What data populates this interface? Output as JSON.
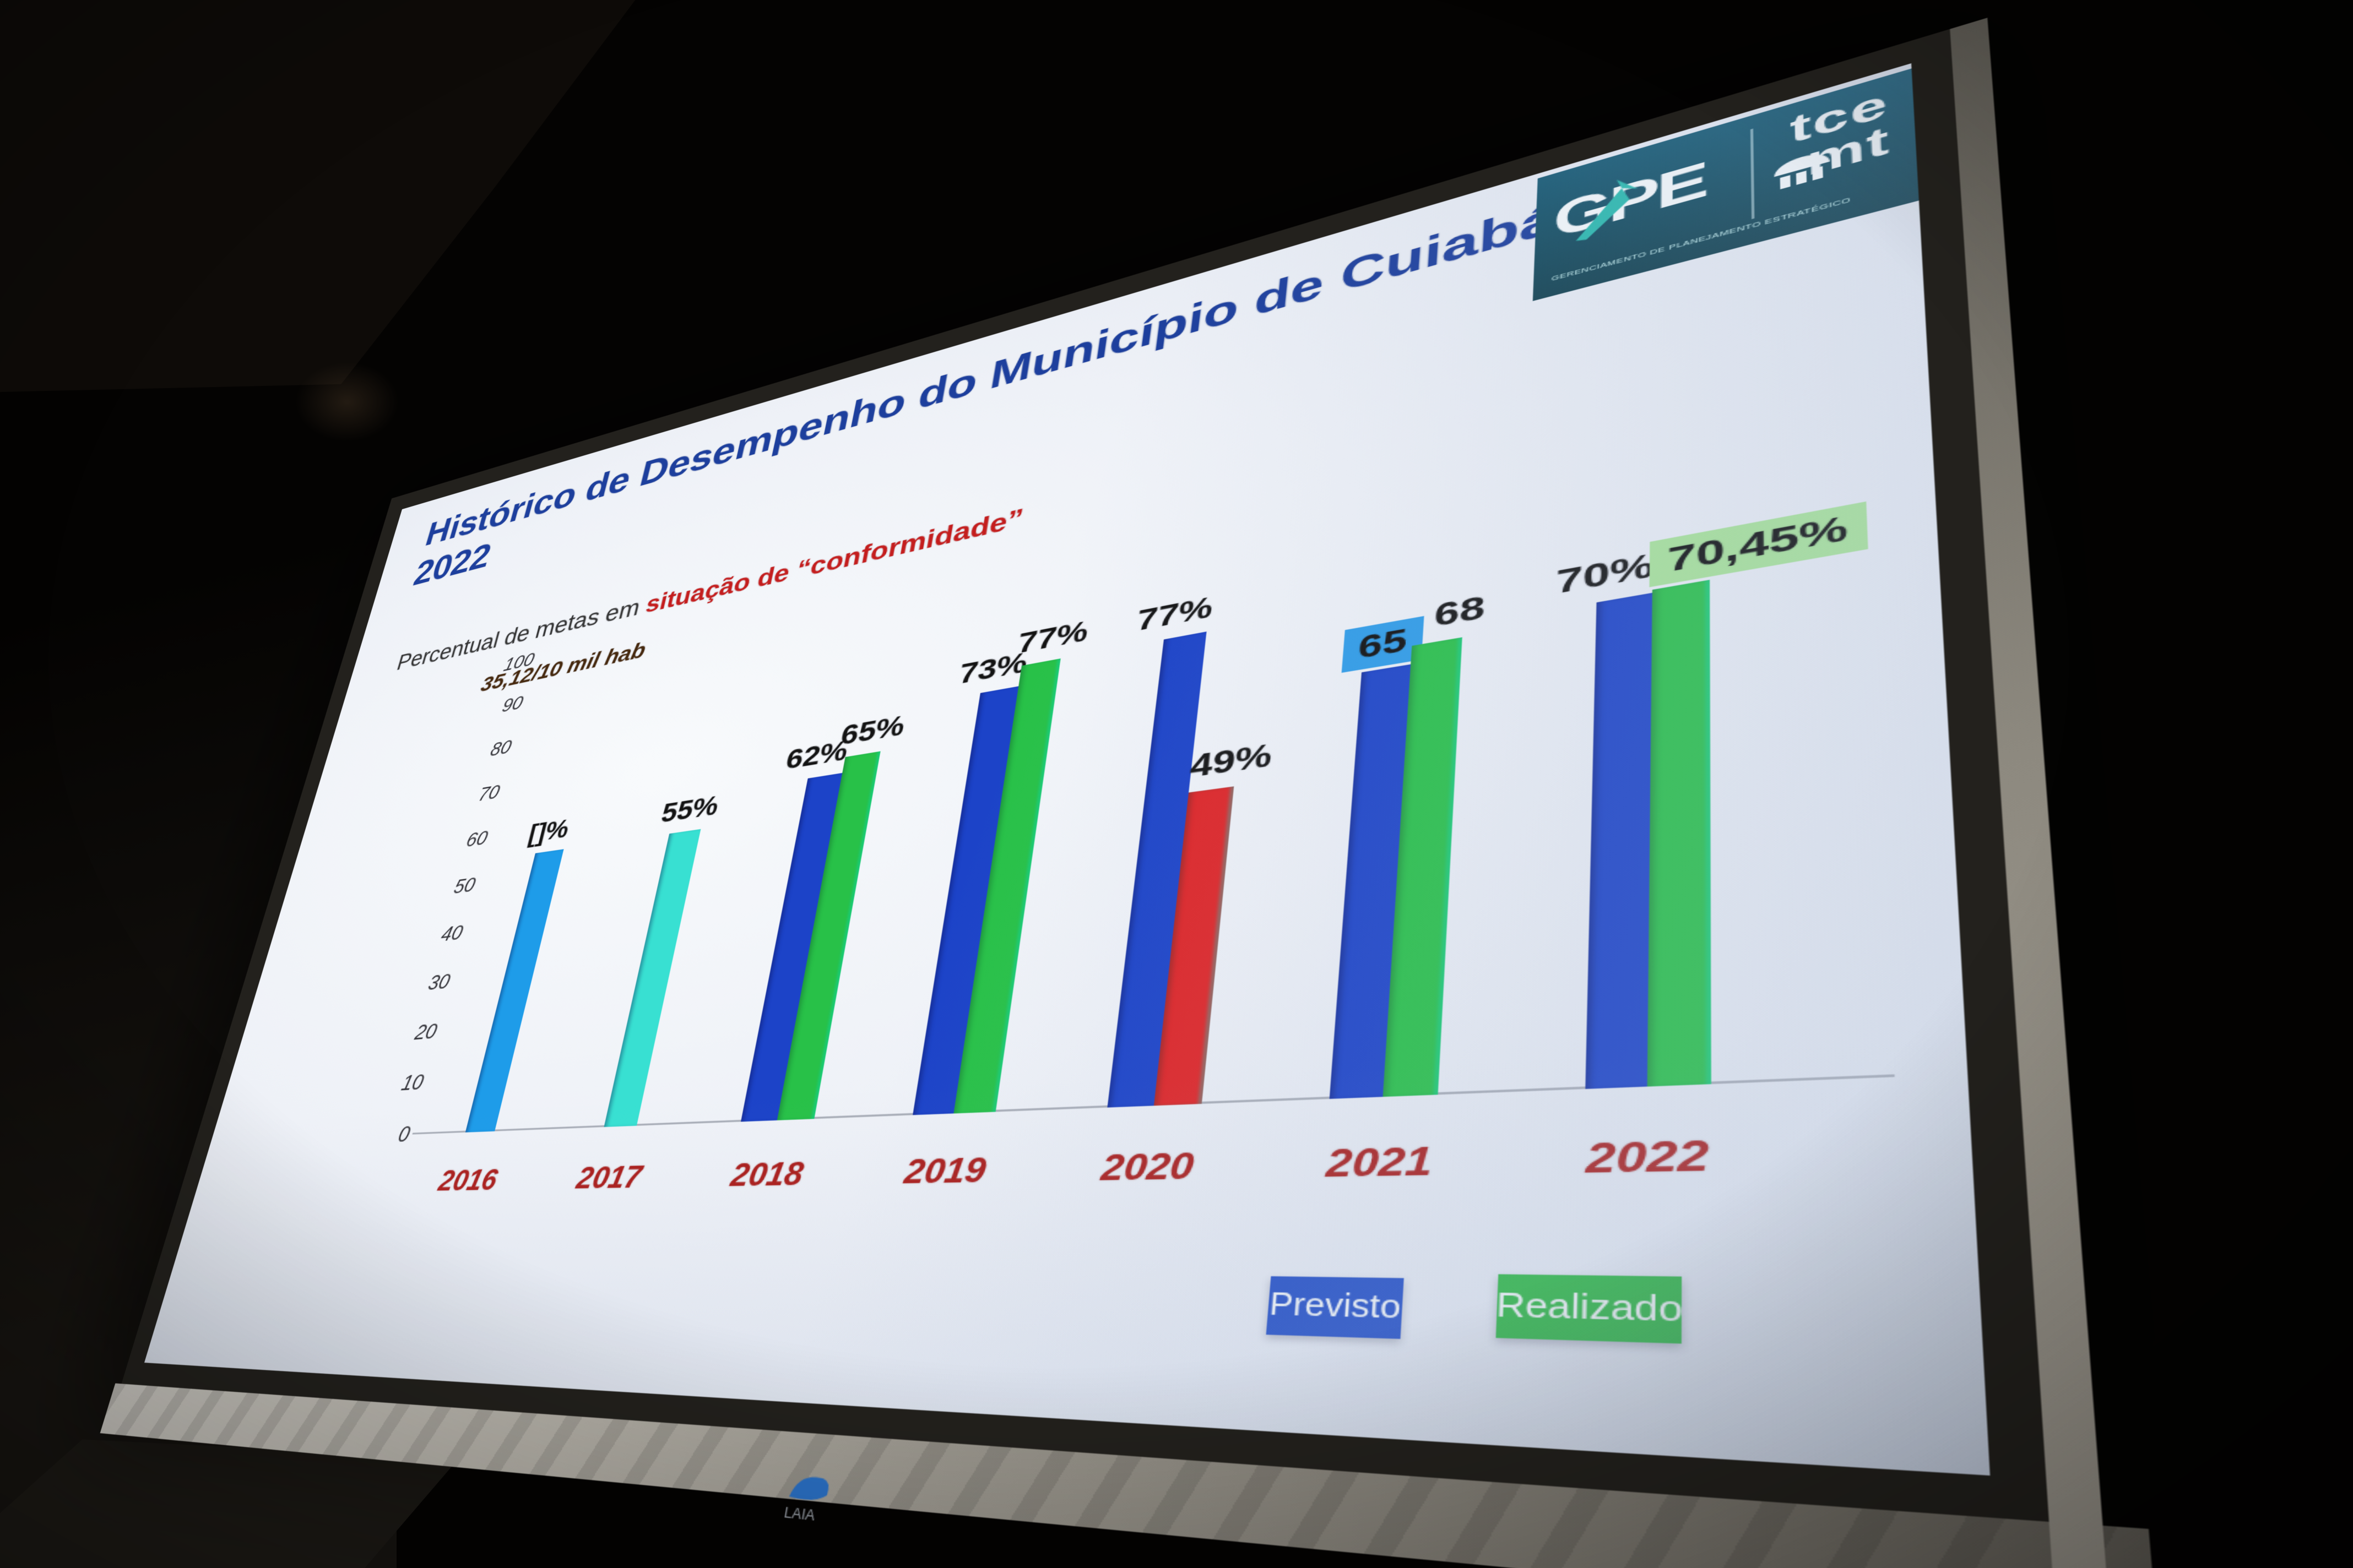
{
  "slide": {
    "title_line1": "Histórico de Desempenho do Município de Cuiabá -",
    "title_line2": "2022",
    "subtitle_plain": "Percentual de metas em ",
    "subtitle_red": "situação de “conformidade”",
    "annotation": "35,12/10 mil hab"
  },
  "colors": {
    "title": "#1d3f9d",
    "subtitle_plain": "#333333",
    "subtitle_red": "#c41e1e",
    "annotation": "#46290f",
    "year_labels": "#ab1f1d",
    "slide_background": "#eef1f7"
  },
  "logo": {
    "gpe": "GPE",
    "caption": "GERENCIAMENTO DE PLANEJAMENTO ESTRATÉGICO",
    "tce": "tce",
    "mt": "mt",
    "box_color": "#175a74",
    "arrow_color": "#2bb9ae",
    "building_icon": "classical-building-icon"
  },
  "chart_data": {
    "type": "bar",
    "title": "",
    "xlabel": "",
    "ylabel": "",
    "ylim": [
      0,
      100
    ],
    "yticks": [
      0,
      10,
      20,
      30,
      40,
      50,
      60,
      70,
      80,
      90,
      100
    ],
    "grid": false,
    "legend_position": "bottom",
    "categories": [
      "2016",
      "2017",
      "2018",
      "2019",
      "2020",
      "2021",
      "2022"
    ],
    "bars": [
      {
        "year": "2016",
        "items": [
          {
            "label": "[]%",
            "value": 55,
            "color": "#1e9ce9"
          }
        ]
      },
      {
        "year": "2017",
        "items": [
          {
            "label": "55%",
            "value": 55,
            "color": "#38e0d2"
          }
        ]
      },
      {
        "year": "2018",
        "items": [
          {
            "label": "62%",
            "value": 62,
            "color": "#1c43c8"
          },
          {
            "label": "65%",
            "value": 65,
            "color": "#28c148"
          }
        ]
      },
      {
        "year": "2019",
        "items": [
          {
            "label": "73%",
            "value": 73,
            "color": "#1c43c8"
          },
          {
            "label": "77%",
            "value": 77,
            "color": "#28c148"
          }
        ]
      },
      {
        "year": "2020",
        "items": [
          {
            "label": "77%",
            "value": 77,
            "color": "#1c43c8"
          },
          {
            "label": "49%",
            "value": 49,
            "color": "#df2527"
          }
        ]
      },
      {
        "year": "2021",
        "items": [
          {
            "label": "65",
            "value": 65,
            "color": "#1c43c8",
            "label_box": "#2e9ce8"
          },
          {
            "label": "68",
            "value": 68,
            "color": "#28c148"
          }
        ]
      },
      {
        "year": "2022",
        "items": [
          {
            "label": "70%",
            "value": 70,
            "color": "#1c43c8"
          },
          {
            "label": "70,45%",
            "value": 70.45,
            "color": "#28c148",
            "label_box": "#a8e39a"
          }
        ]
      }
    ],
    "legend": [
      {
        "label": "Previsto",
        "color": "#2450c8"
      },
      {
        "label": "Realizado",
        "color": "#2db843"
      }
    ]
  },
  "screen": {
    "brand": "LAIA",
    "brand_color": "#2b72c8"
  }
}
